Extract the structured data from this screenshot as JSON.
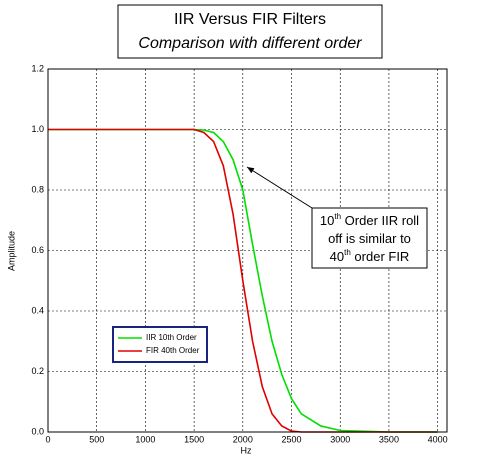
{
  "chart_data": {
    "type": "line",
    "title": "IIR Versus FIR Filters",
    "subtitle": "Comparison with different order",
    "x_label": "Hz",
    "y_label": "Amplitude",
    "x": [
      0,
      500,
      1000,
      1500,
      1600,
      1700,
      1800,
      1900,
      2000,
      2100,
      2200,
      2300,
      2400,
      2500,
      2600,
      2800,
      3000,
      3500,
      4000
    ],
    "series": [
      {
        "name": "IIR 10th Order",
        "color": "#00e000",
        "values": [
          1,
          1,
          1,
          1,
          0.998,
          0.99,
          0.96,
          0.9,
          0.8,
          0.62,
          0.45,
          0.3,
          0.19,
          0.11,
          0.06,
          0.02,
          0.005,
          0,
          0
        ]
      },
      {
        "name": "FIR 40th Order",
        "color": "#e00000",
        "values": [
          1,
          1,
          1,
          1,
          0.99,
          0.96,
          0.88,
          0.72,
          0.5,
          0.3,
          0.15,
          0.06,
          0.02,
          0.003,
          0,
          0,
          0,
          0,
          0
        ]
      }
    ],
    "xlim": [
      0,
      4096
    ],
    "ylim": [
      0,
      1.2
    ],
    "xticks": [
      0,
      500,
      1000,
      1500,
      2000,
      2500,
      3000,
      3500,
      4000
    ],
    "yticks": [
      {
        "value": 0,
        "label": "0.0"
      },
      0.2,
      0.4,
      0.6,
      0.8,
      {
        "value": 1,
        "label": "1.0"
      },
      1.2
    ],
    "grid": true,
    "annotation": {
      "lines": [
        [
          {
            "text": "10"
          },
          {
            "text": "th",
            "sup": true
          },
          {
            "text": " Order IIR roll"
          }
        ],
        [
          {
            "text": "off is similar to"
          }
        ],
        [
          {
            "text": "40"
          },
          {
            "text": "th",
            "sup": true
          },
          {
            "text": " order FIR"
          }
        ]
      ]
    }
  }
}
